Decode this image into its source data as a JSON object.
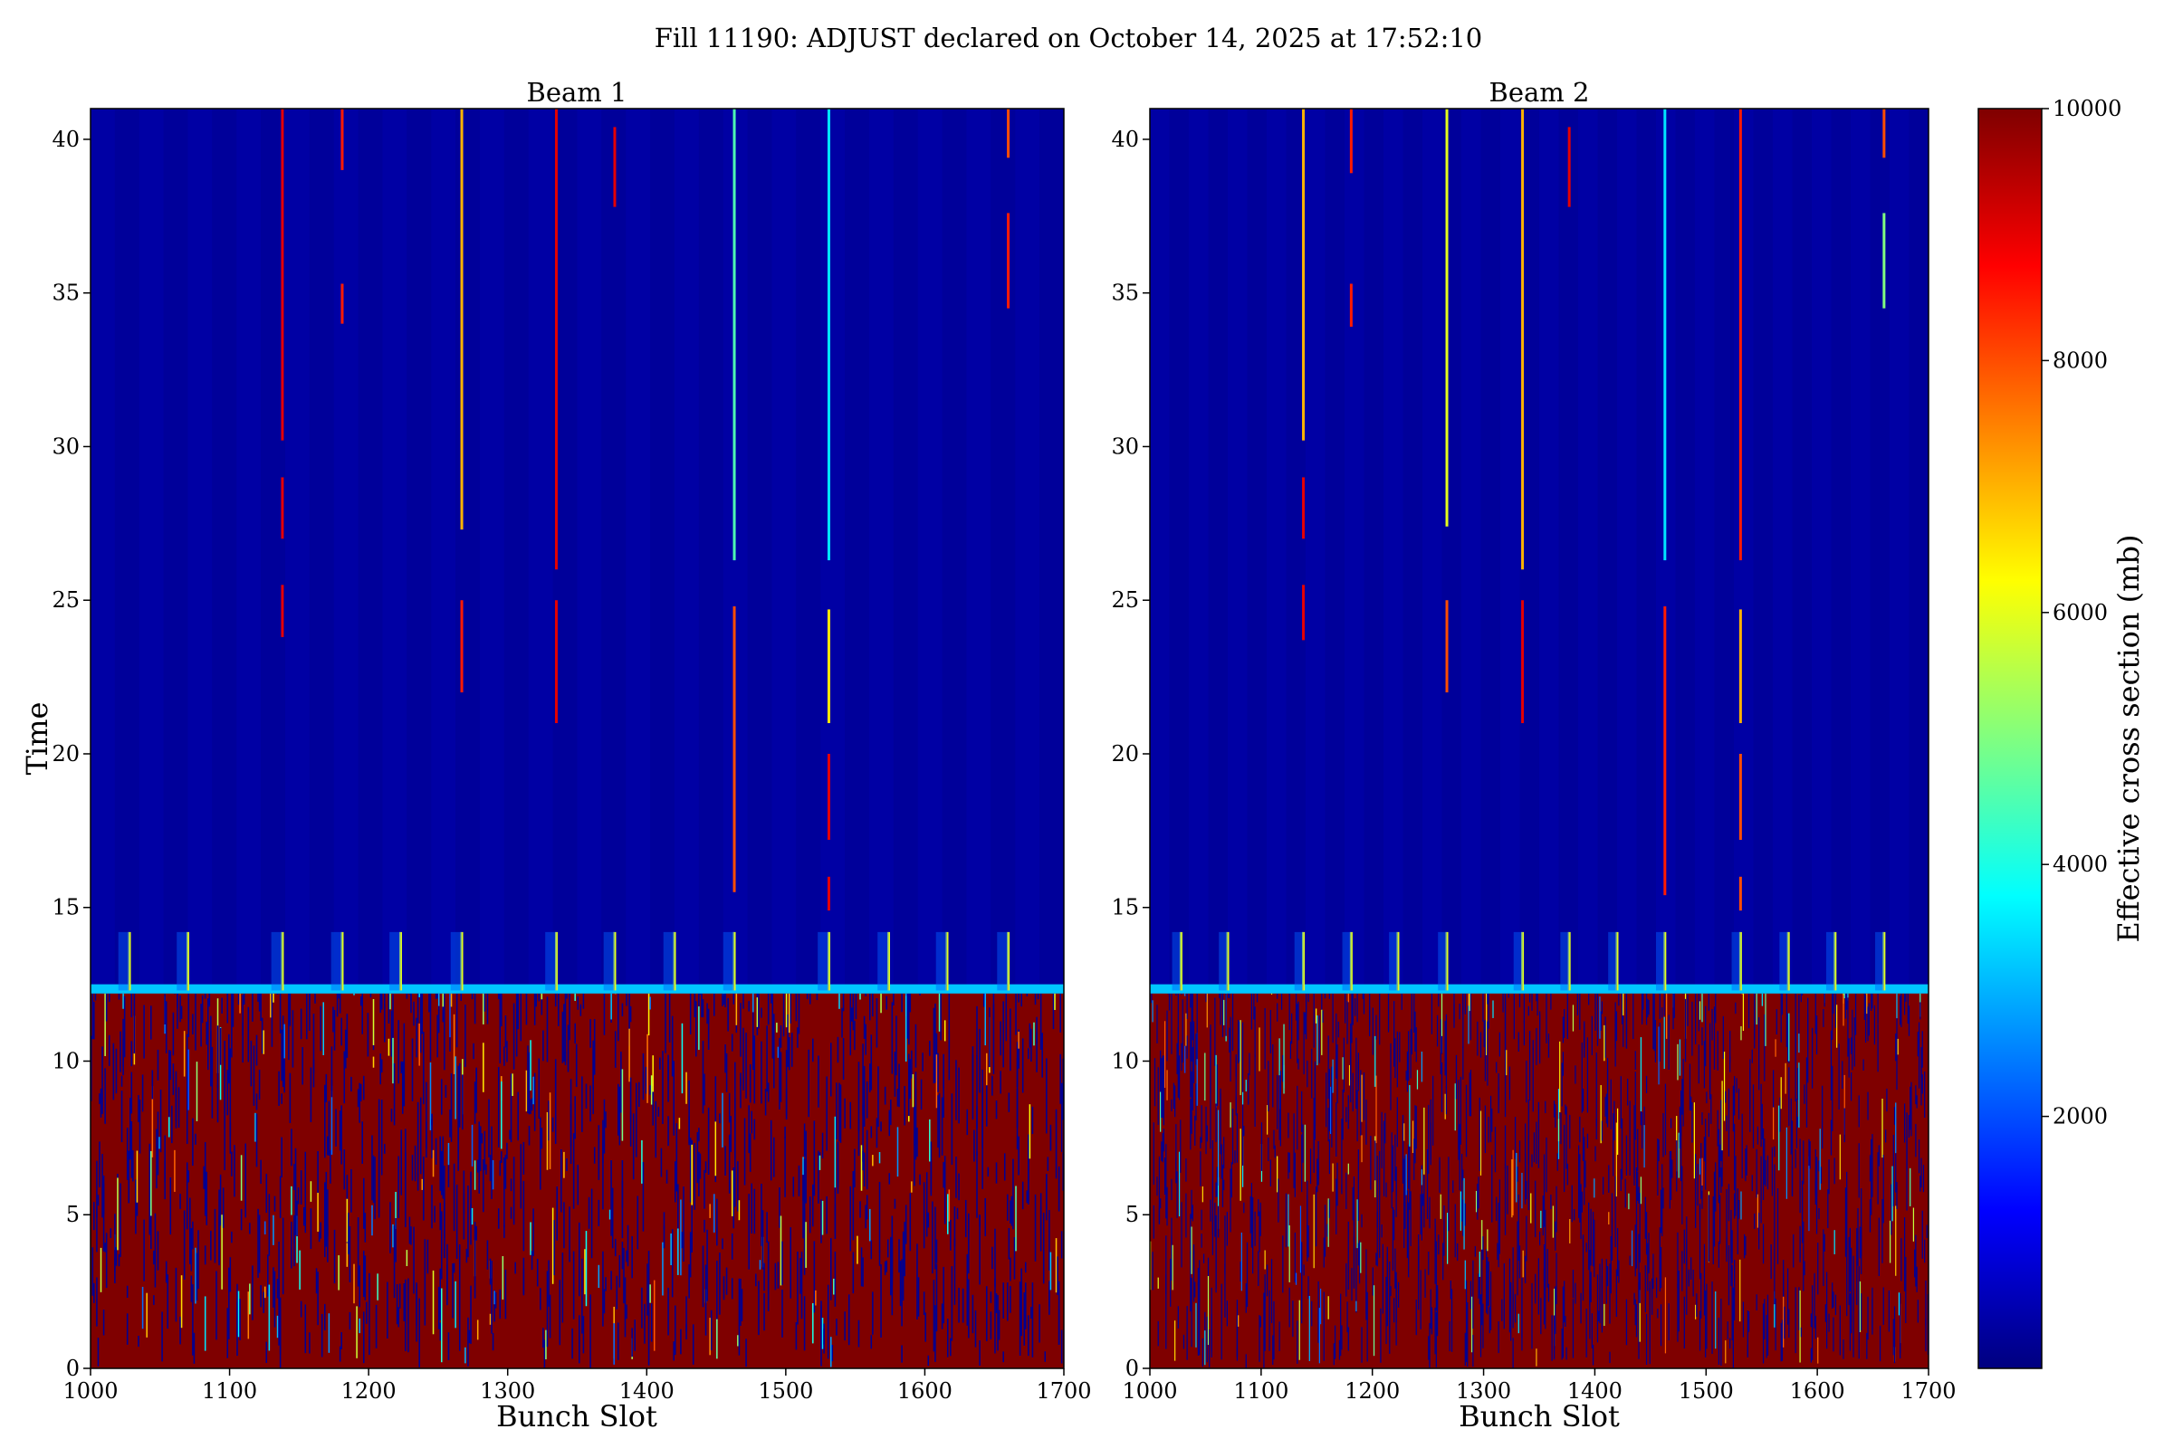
{
  "title": "Fill 11190: ADJUST declared on October 14, 2025 at 17:52:10",
  "colors": {
    "background_low": "#00008c",
    "high": "#7f0000",
    "colormap": [
      "#00007f",
      "#0000ff",
      "#0080ff",
      "#00ffff",
      "#80ff80",
      "#ffff00",
      "#ff8000",
      "#ff0000",
      "#7f0000"
    ]
  },
  "chart_data": [
    {
      "type": "heatmap",
      "title": "Beam 1",
      "xlabel": "Bunch Slot",
      "ylabel": "Time",
      "xlim": [
        1000,
        1700
      ],
      "ylim": [
        0,
        41
      ],
      "xticks": [
        "1000",
        "1100",
        "1200",
        "1300",
        "1400",
        "1500",
        "1600",
        "1700"
      ],
      "yticks": [
        "0",
        "5",
        "10",
        "15",
        "20",
        "25",
        "30",
        "35",
        "40"
      ],
      "saturated_below_time": 12.3,
      "saturated_value": 10000,
      "background_value": 300,
      "spike_slots": [
        1028,
        1070,
        1138,
        1181,
        1223,
        1267,
        1335,
        1377,
        1420,
        1463,
        1531,
        1574,
        1616,
        1660
      ],
      "streaks": [
        {
          "slot": 1138,
          "t0": 30.2,
          "t1": 41,
          "value": 9000
        },
        {
          "slot": 1138,
          "t0": 27,
          "t1": 29,
          "value": 9000
        },
        {
          "slot": 1138,
          "t0": 23.8,
          "t1": 25.5,
          "value": 9000
        },
        {
          "slot": 1181,
          "t0": 39,
          "t1": 41,
          "value": 8500
        },
        {
          "slot": 1181,
          "t0": 34,
          "t1": 35.3,
          "value": 8500
        },
        {
          "slot": 1267,
          "t0": 27.3,
          "t1": 41,
          "value": 7000
        },
        {
          "slot": 1267,
          "t0": 22,
          "t1": 25,
          "value": 8500
        },
        {
          "slot": 1335,
          "t0": 26,
          "t1": 41,
          "value": 9000
        },
        {
          "slot": 1335,
          "t0": 21,
          "t1": 25,
          "value": 9000
        },
        {
          "slot": 1377,
          "t0": 37.8,
          "t1": 40.4,
          "value": 9000
        },
        {
          "slot": 1463,
          "t0": 26.3,
          "t1": 41,
          "value": 4500
        },
        {
          "slot": 1463,
          "t0": 15.5,
          "t1": 24.8,
          "value": 8000
        },
        {
          "slot": 1531,
          "t0": 26.3,
          "t1": 41,
          "value": 3500
        },
        {
          "slot": 1531,
          "t0": 21,
          "t1": 24.7,
          "value": 6500
        },
        {
          "slot": 1531,
          "t0": 17.2,
          "t1": 20,
          "value": 9000
        },
        {
          "slot": 1531,
          "t0": 14.9,
          "t1": 16,
          "value": 9000
        },
        {
          "slot": 1660,
          "t0": 39.4,
          "t1": 41,
          "value": 8000
        },
        {
          "slot": 1660,
          "t0": 34.5,
          "t1": 37.6,
          "value": 8500
        }
      ]
    },
    {
      "type": "heatmap",
      "title": "Beam 2",
      "xlabel": "Bunch Slot",
      "ylabel": "",
      "xlim": [
        1000,
        1700
      ],
      "ylim": [
        0,
        41
      ],
      "xticks": [
        "1000",
        "1100",
        "1200",
        "1300",
        "1400",
        "1500",
        "1600",
        "1700"
      ],
      "yticks": [
        "0",
        "5",
        "10",
        "15",
        "20",
        "25",
        "30",
        "35",
        "40"
      ],
      "saturated_below_time": 12.3,
      "saturated_value": 10000,
      "background_value": 300,
      "spike_slots": [
        1028,
        1070,
        1138,
        1181,
        1223,
        1267,
        1335,
        1377,
        1420,
        1463,
        1531,
        1574,
        1616,
        1660
      ],
      "streaks": [
        {
          "slot": 1138,
          "t0": 30.2,
          "t1": 41,
          "value": 7000
        },
        {
          "slot": 1138,
          "t0": 27,
          "t1": 29,
          "value": 9000
        },
        {
          "slot": 1138,
          "t0": 23.7,
          "t1": 25.5,
          "value": 9000
        },
        {
          "slot": 1181,
          "t0": 38.9,
          "t1": 41,
          "value": 8500
        },
        {
          "slot": 1181,
          "t0": 33.9,
          "t1": 35.3,
          "value": 8500
        },
        {
          "slot": 1267,
          "t0": 27.4,
          "t1": 41,
          "value": 6000
        },
        {
          "slot": 1267,
          "t0": 22,
          "t1": 25,
          "value": 8000
        },
        {
          "slot": 1335,
          "t0": 26,
          "t1": 41,
          "value": 7000
        },
        {
          "slot": 1335,
          "t0": 21,
          "t1": 25,
          "value": 9000
        },
        {
          "slot": 1377,
          "t0": 37.8,
          "t1": 40.4,
          "value": 9000
        },
        {
          "slot": 1463,
          "t0": 26.3,
          "t1": 41,
          "value": 3500
        },
        {
          "slot": 1463,
          "t0": 15.4,
          "t1": 24.8,
          "value": 8500
        },
        {
          "slot": 1531,
          "t0": 26.3,
          "t1": 41,
          "value": 8500
        },
        {
          "slot": 1531,
          "t0": 21,
          "t1": 24.7,
          "value": 7000
        },
        {
          "slot": 1531,
          "t0": 17.2,
          "t1": 20,
          "value": 8000
        },
        {
          "slot": 1531,
          "t0": 14.9,
          "t1": 16,
          "value": 8000
        },
        {
          "slot": 1660,
          "t0": 39.4,
          "t1": 41,
          "value": 8000
        },
        {
          "slot": 1660,
          "t0": 34.5,
          "t1": 37.6,
          "value": 5000
        }
      ]
    }
  ],
  "colorbar": {
    "label": "Effective cross section (mb)",
    "vmin": 0,
    "vmax": 10000,
    "ticks": [
      "2000",
      "4000",
      "6000",
      "8000",
      "10000"
    ]
  }
}
